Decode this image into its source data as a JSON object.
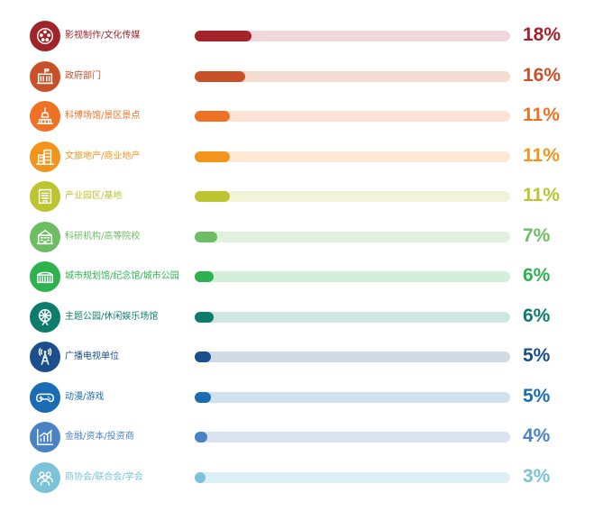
{
  "chart_data": {
    "type": "bar",
    "orientation": "horizontal",
    "value_unit": "%",
    "categories": [
      "影视制作/文化传媒",
      "政府部门",
      "科博场馆/景区景点",
      "文旅地产/商业地产",
      "产业园区/基地",
      "科研机构/高等院校",
      "城市规划馆/纪念馆/城市公园",
      "主题公园/休闲娱乐场馆",
      "广播电视单位",
      "动漫/游戏",
      "金融/资本/投资商",
      "商协会/联合会/学会"
    ],
    "values": [
      18,
      16,
      11,
      11,
      11,
      7,
      6,
      6,
      5,
      5,
      4,
      3
    ],
    "value_labels": [
      "18%",
      "16%",
      "11%",
      "11%",
      "11%",
      "7%",
      "6%",
      "6%",
      "5%",
      "5%",
      "4%",
      "3%"
    ],
    "xlim": [
      0,
      100
    ],
    "grid": false,
    "legend": "none",
    "colors": [
      "#a2242b",
      "#c9512a",
      "#ef7124",
      "#f3941d",
      "#bcc42f",
      "#6dbd63",
      "#2db24f",
      "#0e7c6a",
      "#1a4e8c",
      "#1a6cb4",
      "#4a83c4",
      "#7ac3d8"
    ],
    "track_colors": [
      "#efd7d7",
      "#f5dcd2",
      "#fde3d5",
      "#fde9d4",
      "#f2f3d9",
      "#e0f2de",
      "#d3efda",
      "#cfe5e1",
      "#d1dbe6",
      "#d1e1ef",
      "#d9e4f0",
      "#dceff4"
    ],
    "icons": [
      "film-reel-icon",
      "government-building-icon",
      "museum-tower-icon",
      "city-buildings-icon",
      "industrial-park-icon",
      "research-campus-icon",
      "exhibition-hall-icon",
      "ferris-wheel-icon",
      "broadcast-tower-icon",
      "gamepad-icon",
      "growth-chart-icon",
      "people-group-icon"
    ]
  }
}
